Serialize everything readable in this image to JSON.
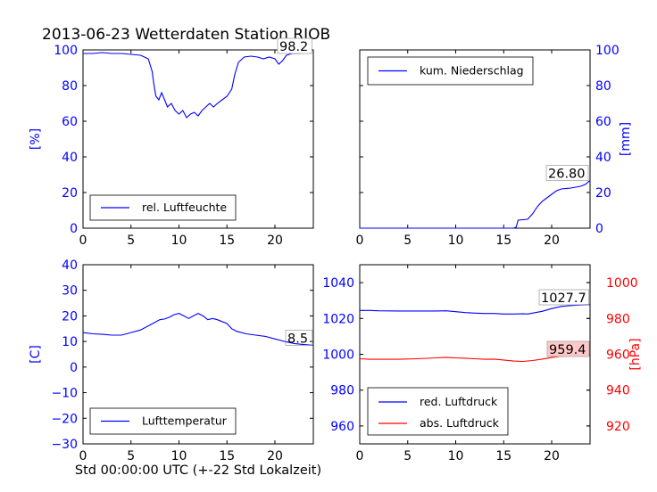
{
  "title": "2013-06-23 Wetterdaten Station RJOB",
  "xlabel": "Std 00:00:00 UTC (+-22 Std Lokalzeit)",
  "colors": {
    "primary": "#0000ff",
    "secondary": "#ff0000",
    "box_fill": "#ffc8c8"
  },
  "chart_data": [
    {
      "type": "line",
      "name": "humidity",
      "ylabel": "[%]",
      "xlim": [
        0,
        24
      ],
      "ylim": [
        0,
        100
      ],
      "xticks": [
        0,
        5,
        10,
        15,
        20
      ],
      "yticks": [
        0,
        20,
        40,
        60,
        80,
        100
      ],
      "legend": {
        "label": "rel. Luftfeuchte",
        "placement": "lower-center"
      },
      "annotation": "98.2",
      "series": [
        {
          "label": "rel. Luftfeuchte",
          "color": "#0000ff",
          "x": [
            0,
            1,
            2,
            3,
            4,
            5,
            6,
            6.8,
            7.2,
            7.4,
            7.6,
            7.9,
            8.2,
            8.5,
            8.8,
            9.2,
            9.6,
            10.0,
            10.4,
            10.8,
            11.2,
            11.6,
            12.0,
            12.4,
            12.8,
            13.2,
            13.6,
            14.0,
            14.5,
            15.0,
            15.5,
            15.8,
            16.2,
            16.8,
            17.5,
            18.2,
            18.8,
            19.4,
            20.0,
            20.4,
            20.8,
            21.2,
            21.8,
            22.5,
            23.2,
            23.8
          ],
          "y": [
            98,
            98,
            98.5,
            98,
            98,
            97.5,
            97,
            95,
            88,
            80,
            74,
            72,
            76,
            72,
            68,
            70,
            66,
            64,
            66,
            62,
            64,
            65,
            63,
            66,
            68,
            70,
            68,
            70,
            72,
            74,
            78,
            86,
            93,
            96,
            96.5,
            96,
            95,
            96,
            95,
            92,
            94,
            97,
            98,
            98,
            98.5,
            98.2
          ]
        }
      ]
    },
    {
      "type": "line",
      "name": "precipitation",
      "ylabel": "[mm]",
      "xlim": [
        0,
        24
      ],
      "ylim": [
        0,
        100
      ],
      "xticks": [
        0,
        5,
        10,
        15,
        20
      ],
      "yticks": [
        0,
        20,
        40,
        60,
        80,
        100
      ],
      "legend": {
        "label": "kum. Niederschlag",
        "placement": "top-left"
      },
      "annotation": "26.80",
      "series": [
        {
          "label": "kum. Niederschlag",
          "color": "#0000ff",
          "x": [
            0,
            5,
            10,
            15,
            16.0,
            16.3,
            16.5,
            17.5,
            18.0,
            18.5,
            19.0,
            19.5,
            20.0,
            20.5,
            21.0,
            22.0,
            23.0,
            23.5,
            24.0
          ],
          "y": [
            0,
            0,
            0,
            0,
            0,
            0.5,
            4.5,
            5,
            8,
            12,
            15,
            17,
            19,
            21,
            22,
            22.5,
            23.5,
            24.5,
            26.8
          ]
        }
      ]
    },
    {
      "type": "line",
      "name": "temperature",
      "ylabel": "[C]",
      "xlim": [
        0,
        24
      ],
      "ylim": [
        -30,
        40
      ],
      "xticks": [
        0,
        5,
        10,
        15,
        20
      ],
      "yticks": [
        -30,
        -20,
        -10,
        0,
        10,
        20,
        30,
        40
      ],
      "legend": {
        "label": "Lufttemperatur",
        "placement": "lower-center"
      },
      "annotation": "8.5",
      "series": [
        {
          "label": "Lufttemperatur",
          "color": "#0000ff",
          "x": [
            0,
            1,
            2,
            3,
            4,
            5,
            6,
            7,
            7.5,
            8,
            8.5,
            9,
            9.5,
            10,
            10.5,
            11,
            11.5,
            12,
            12.5,
            13,
            13.5,
            14,
            15,
            15.5,
            16,
            17,
            18,
            19,
            20,
            21,
            22,
            23,
            24
          ],
          "y": [
            13.5,
            13,
            12.8,
            12.5,
            12.5,
            13.5,
            14.5,
            16.5,
            17.5,
            18.5,
            18.8,
            19.5,
            20.5,
            21,
            20,
            19,
            20,
            21,
            20,
            18.5,
            19,
            18.5,
            17,
            15,
            14,
            13,
            12.5,
            12,
            11,
            10,
            9.2,
            8.8,
            8.5
          ]
        }
      ]
    },
    {
      "type": "line",
      "name": "pressure",
      "ylabel": "[hPa]",
      "xlim": [
        0,
        24
      ],
      "ylim": [
        950,
        1050
      ],
      "ylim_right": [
        910,
        1010
      ],
      "xticks": [
        0,
        5,
        10,
        15,
        20
      ],
      "yticks": [
        960,
        980,
        1000,
        1020,
        1040
      ],
      "yticks_right": [
        920,
        940,
        960,
        980,
        1000
      ],
      "legend": {
        "labels": [
          "red. Luftdruck",
          "abs. Luftdruck"
        ],
        "placement": "lower-left"
      },
      "annotations": [
        "1027.7",
        "959.4"
      ],
      "series": [
        {
          "label": "red. Luftdruck",
          "color": "#0000ff",
          "axis": "left",
          "x": [
            0,
            1,
            2,
            4,
            6,
            8,
            9,
            10,
            11,
            12,
            13,
            14,
            15,
            16,
            17,
            17.5,
            18,
            19,
            20,
            21,
            22,
            23,
            24
          ],
          "y": [
            1024.5,
            1024.5,
            1024.3,
            1024.2,
            1024.2,
            1024.2,
            1024.3,
            1023.8,
            1023.3,
            1023,
            1022.8,
            1022.8,
            1022.5,
            1022.5,
            1022.6,
            1022.5,
            1023,
            1024,
            1025.5,
            1026.7,
            1027.2,
            1027.5,
            1027.7
          ]
        },
        {
          "label": "abs. Luftdruck",
          "color": "#ff0000",
          "axis": "right",
          "x": [
            0,
            1,
            2,
            4,
            6,
            8,
            9,
            10,
            11,
            12,
            13,
            14,
            15,
            16,
            17,
            18,
            19,
            20,
            21,
            22,
            23,
            24
          ],
          "y": [
            957.5,
            957.2,
            957.2,
            957.2,
            957.5,
            958,
            958.3,
            958,
            957.8,
            957.5,
            957.2,
            957.3,
            956.8,
            956.2,
            956,
            956.5,
            957.3,
            958.2,
            958.9,
            959.2,
            959.3,
            959.4
          ]
        }
      ]
    }
  ]
}
